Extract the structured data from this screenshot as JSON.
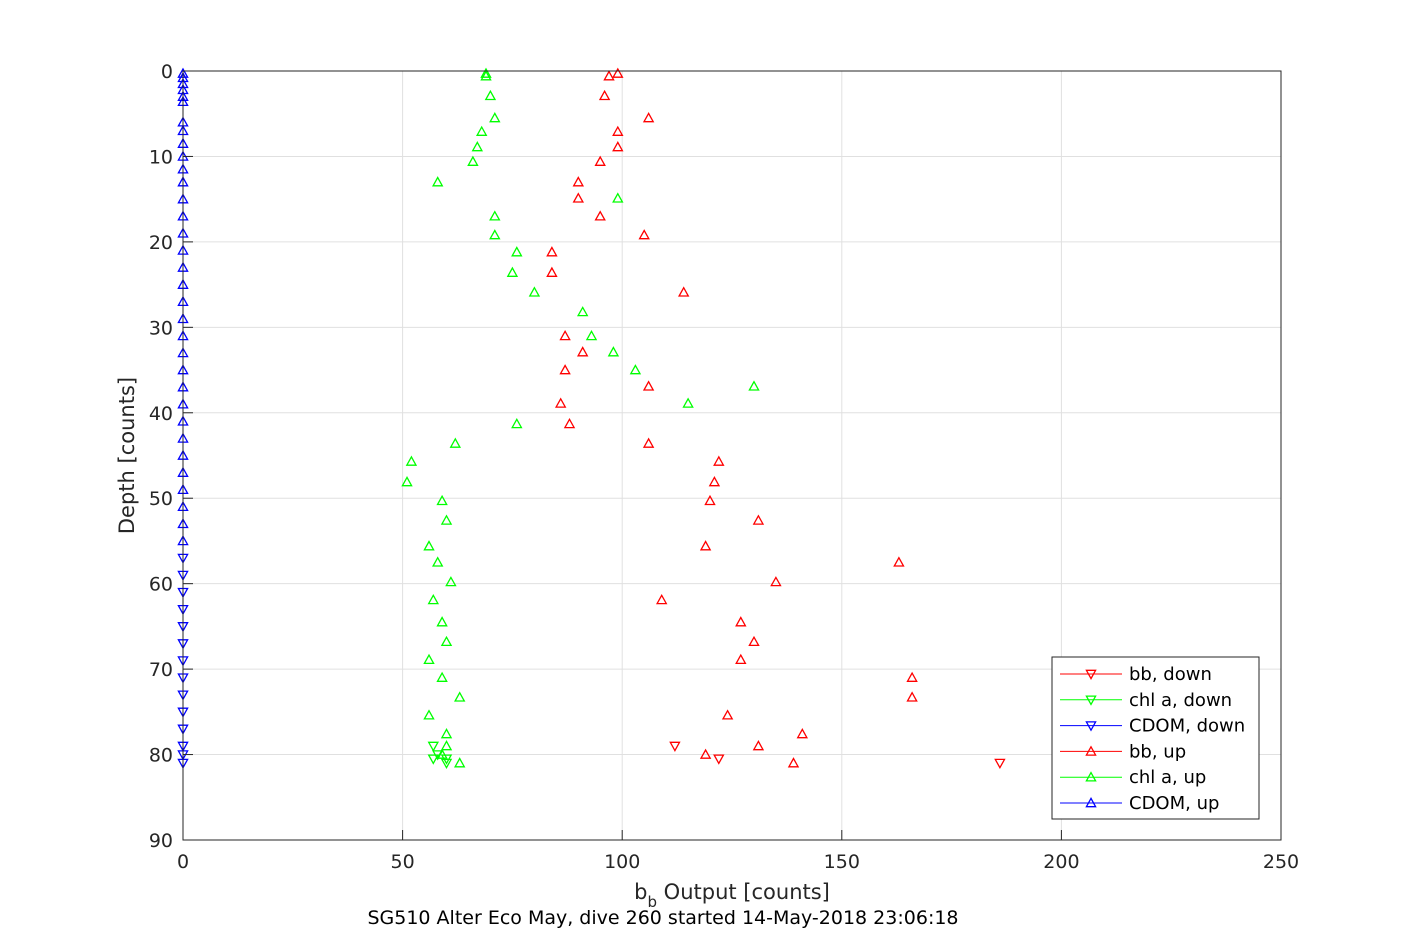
{
  "chart_data": {
    "type": "scatter",
    "xlabel_main": "b",
    "xlabel_sub": "b",
    "xlabel_rest": " Output [counts]",
    "ylabel": "Depth [counts]",
    "caption": "SG510 Alter Eco May, dive 260 started 14-May-2018 23:06:18",
    "xlim": [
      0,
      250
    ],
    "ylim": [
      0,
      90
    ],
    "y_reversed": true,
    "grid": true,
    "legend_placement": "bottom-right",
    "xticks": [
      "0",
      "50",
      "100",
      "150",
      "200",
      "250"
    ],
    "yticks": [
      "0",
      "10",
      "20",
      "30",
      "40",
      "50",
      "60",
      "70",
      "80",
      "90"
    ],
    "series": [
      {
        "name": "bb, down",
        "color": "#ff0000",
        "marker": "triangle-down",
        "points": [
          [
            112,
            79.0
          ],
          [
            122,
            80.5
          ],
          [
            186,
            81.0
          ]
        ]
      },
      {
        "name": "chl a, down",
        "color": "#00ff00",
        "marker": "triangle-down",
        "points": [
          [
            57,
            79.0
          ],
          [
            58,
            80.0
          ],
          [
            57,
            80.5
          ],
          [
            60,
            80.5
          ],
          [
            60,
            81.0
          ]
        ]
      },
      {
        "name": "CDOM, down",
        "color": "#0000ff",
        "marker": "triangle-down",
        "points": [
          [
            0,
            57.0
          ],
          [
            0,
            59.0
          ],
          [
            0,
            61.0
          ],
          [
            0,
            63.0
          ],
          [
            0,
            65.0
          ],
          [
            0,
            67.0
          ],
          [
            0,
            69.0
          ],
          [
            0,
            71.0
          ],
          [
            0,
            73.0
          ],
          [
            0,
            75.0
          ],
          [
            0,
            77.0
          ],
          [
            0,
            79.0
          ],
          [
            0,
            80.0
          ],
          [
            0,
            81.0
          ]
        ]
      },
      {
        "name": "bb, up",
        "color": "#ff0000",
        "marker": "triangle-up",
        "points": [
          [
            99,
            0.3
          ],
          [
            97,
            0.6
          ],
          [
            96,
            2.9
          ],
          [
            106,
            5.5
          ],
          [
            99,
            7.1
          ],
          [
            99,
            8.9
          ],
          [
            95,
            10.6
          ],
          [
            90,
            13.0
          ],
          [
            90,
            14.9
          ],
          [
            95,
            17.0
          ],
          [
            105,
            19.2
          ],
          [
            84,
            21.2
          ],
          [
            84,
            23.6
          ],
          [
            114,
            25.9
          ],
          [
            87,
            31.0
          ],
          [
            91,
            32.9
          ],
          [
            87,
            35.0
          ],
          [
            106,
            36.9
          ],
          [
            86,
            38.9
          ],
          [
            88,
            41.3
          ],
          [
            106,
            43.6
          ],
          [
            122,
            45.7
          ],
          [
            121,
            48.1
          ],
          [
            120,
            50.3
          ],
          [
            131,
            52.6
          ],
          [
            119,
            55.6
          ],
          [
            163,
            57.5
          ],
          [
            135,
            59.8
          ],
          [
            109,
            61.9
          ],
          [
            127,
            64.5
          ],
          [
            130,
            66.8
          ],
          [
            127,
            68.9
          ],
          [
            166,
            71.0
          ],
          [
            166,
            73.3
          ],
          [
            124,
            75.4
          ],
          [
            141,
            77.6
          ],
          [
            131,
            79.0
          ],
          [
            119,
            80.0
          ],
          [
            139,
            81.0
          ]
        ]
      },
      {
        "name": "chl a, up",
        "color": "#00ff00",
        "marker": "triangle-up",
        "points": [
          [
            69,
            0.3
          ],
          [
            69,
            0.6
          ],
          [
            70,
            2.9
          ],
          [
            71,
            5.5
          ],
          [
            68,
            7.1
          ],
          [
            67,
            8.9
          ],
          [
            66,
            10.6
          ],
          [
            58,
            13.0
          ],
          [
            99,
            14.9
          ],
          [
            71,
            17.0
          ],
          [
            71,
            19.2
          ],
          [
            76,
            21.2
          ],
          [
            75,
            23.6
          ],
          [
            80,
            25.9
          ],
          [
            91,
            28.2
          ],
          [
            93,
            31.0
          ],
          [
            98,
            32.9
          ],
          [
            103,
            35.0
          ],
          [
            130,
            36.9
          ],
          [
            115,
            38.9
          ],
          [
            76,
            41.3
          ],
          [
            62,
            43.6
          ],
          [
            52,
            45.7
          ],
          [
            51,
            48.1
          ],
          [
            59,
            50.3
          ],
          [
            60,
            52.6
          ],
          [
            56,
            55.6
          ],
          [
            58,
            57.5
          ],
          [
            61,
            59.8
          ],
          [
            57,
            61.9
          ],
          [
            59,
            64.5
          ],
          [
            60,
            66.8
          ],
          [
            56,
            68.9
          ],
          [
            59,
            71.0
          ],
          [
            63,
            73.3
          ],
          [
            56,
            75.4
          ],
          [
            60,
            77.6
          ],
          [
            60,
            79.0
          ],
          [
            59,
            80.0
          ],
          [
            63,
            81.0
          ]
        ]
      },
      {
        "name": "CDOM, up",
        "color": "#0000ff",
        "marker": "triangle-up",
        "points": [
          [
            0,
            0.3
          ],
          [
            0,
            0.8
          ],
          [
            0,
            1.5
          ],
          [
            0,
            2.2
          ],
          [
            0,
            3.0
          ],
          [
            0,
            3.6
          ],
          [
            0,
            6.0
          ],
          [
            0,
            7.0
          ],
          [
            0,
            8.5
          ],
          [
            0,
            10.0
          ],
          [
            0,
            11.5
          ],
          [
            0,
            13.0
          ],
          [
            0,
            15.0
          ],
          [
            0,
            17.0
          ],
          [
            0,
            19.0
          ],
          [
            0,
            21.0
          ],
          [
            0,
            23.0
          ],
          [
            0,
            25.0
          ],
          [
            0,
            27.0
          ],
          [
            0,
            29.0
          ],
          [
            0,
            31.0
          ],
          [
            0,
            33.0
          ],
          [
            0,
            35.0
          ],
          [
            0,
            37.0
          ],
          [
            0,
            39.0
          ],
          [
            0,
            41.0
          ],
          [
            0,
            43.0
          ],
          [
            0,
            45.0
          ],
          [
            0,
            47.0
          ],
          [
            0,
            49.0
          ],
          [
            0,
            51.0
          ],
          [
            0,
            53.0
          ],
          [
            0,
            55.0
          ]
        ]
      }
    ]
  }
}
